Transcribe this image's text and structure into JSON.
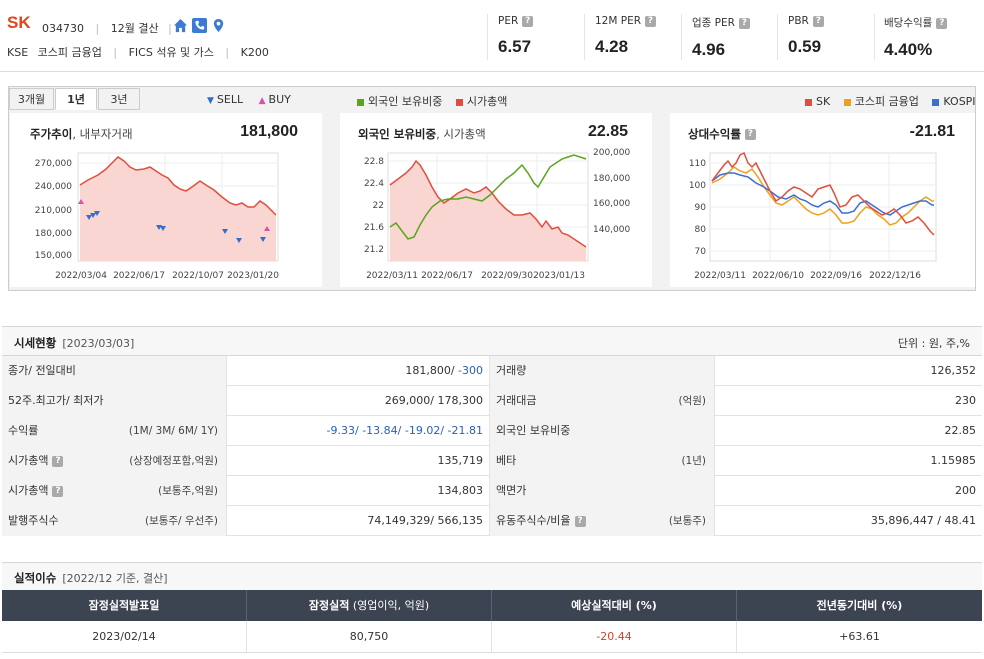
{
  "company": {
    "name": "SK",
    "code": "034730",
    "fiscal": "12월 결산",
    "market": "KSE",
    "sector": "코스피 금융업",
    "fics": "FICS 석유 및 가스",
    "index": "K200"
  },
  "metrics": [
    {
      "label": "PER",
      "value": "6.57"
    },
    {
      "label": "12M PER",
      "value": "4.28"
    },
    {
      "label": "업종 PER",
      "value": "4.96"
    },
    {
      "label": "PBR",
      "value": "0.59"
    },
    {
      "label": "배당수익률",
      "value": "4.40%"
    }
  ],
  "tabs": [
    "3개월",
    "1년",
    "3년"
  ],
  "legends": {
    "sell": "SELL",
    "buy": "BUY",
    "foreign": "외국인 보유비중",
    "mcap": "시가총액",
    "sk": "SK",
    "kospi_fin": "코스피 금융업",
    "kospi": "KOSPI"
  },
  "colors": {
    "red": "#e04e3c",
    "green": "#5aa51f",
    "orange": "#f0a01e",
    "blue": "#3b6fd0",
    "sell": "#2f6fd1",
    "buy": "#d94fb2"
  },
  "charts": {
    "price": {
      "title": "주가추이",
      "subtitle": ", 내부자거래",
      "value": "181,800",
      "yticks": [
        "270,000",
        "240,000",
        "210,000",
        "180,000",
        "150,000"
      ],
      "xticks": [
        "2022/03/04",
        "2022/06/17",
        "2022/10/07",
        "2023/01/20"
      ]
    },
    "foreign": {
      "title": "외국인 보유비중",
      "subtitle": ", 시가총액",
      "value": "22.85",
      "yticks_left": [
        "22.8",
        "22.4",
        "22",
        "21.6",
        "21.2"
      ],
      "yticks_right": [
        "200,000",
        "180,000",
        "160,000",
        "140,000"
      ],
      "xticks": [
        "2022/03/11",
        "2022/06/17",
        "2022/09/30",
        "2023/01/13"
      ]
    },
    "relative": {
      "title": "상대수익률",
      "value": "-21.81",
      "yticks": [
        "110",
        "100",
        "90",
        "80",
        "70"
      ],
      "xticks": [
        "2022/03/11",
        "2022/06/10",
        "2022/09/16",
        "2022/12/16"
      ]
    }
  },
  "market": {
    "title": "시세현황",
    "date": "[2023/03/03]",
    "unit": "단위 : 원, 주,%",
    "rows": [
      {
        "l1": "종가/ 전일대비",
        "n1": "",
        "v1a": "181,800/",
        "v1b": " -300",
        "l2": "거래량",
        "n2": "",
        "v2": "126,352"
      },
      {
        "l1": "52주.최고가/ 최저가",
        "n1": "",
        "v1a": "269,000/ 178,300",
        "v1b": "",
        "l2": "거래대금",
        "n2": "(억원)",
        "v2": "230"
      },
      {
        "l1": "수익률",
        "n1": "(1M/ 3M/ 6M/ 1Y)",
        "v1a": "",
        "v1b": "-9.33/ -13.84/ -19.02/ -21.81",
        "l2": "외국인 보유비중",
        "n2": "",
        "v2": "22.85"
      },
      {
        "l1": "시가총액",
        "q": true,
        "n1": "(상장예정포함,억원)",
        "v1a": "135,719",
        "v1b": "",
        "l2": "베타",
        "n2": "(1년)",
        "v2": "1.15985"
      },
      {
        "l1": "시가총액",
        "q": true,
        "n1": "(보통주,억원)",
        "v1a": "134,803",
        "v1b": "",
        "l2": "액면가",
        "n2": "",
        "v2": "200"
      },
      {
        "l1": "발행주식수",
        "n1": "(보통주/ 우선주)",
        "v1a": "74,149,329/ 566,135",
        "v1b": "",
        "l2": "유동주식수/비율",
        "q2": true,
        "n2": "(보통주)",
        "v2": "35,896,447 / 48.41"
      }
    ]
  },
  "earnings": {
    "title": "실적이슈",
    "date": "[2022/12 기준, 결산]",
    "headers": [
      {
        "main": "잠정실적발표일",
        "sub": ""
      },
      {
        "main": "잠정실적",
        "sub": " (영업이익, 억원)"
      },
      {
        "main": "예상실적대비 (%)",
        "sub": ""
      },
      {
        "main": "전년동기대비 (%)",
        "sub": ""
      }
    ],
    "row": [
      "2023/02/14",
      "80,750",
      "-20.44",
      "+63.61"
    ]
  }
}
